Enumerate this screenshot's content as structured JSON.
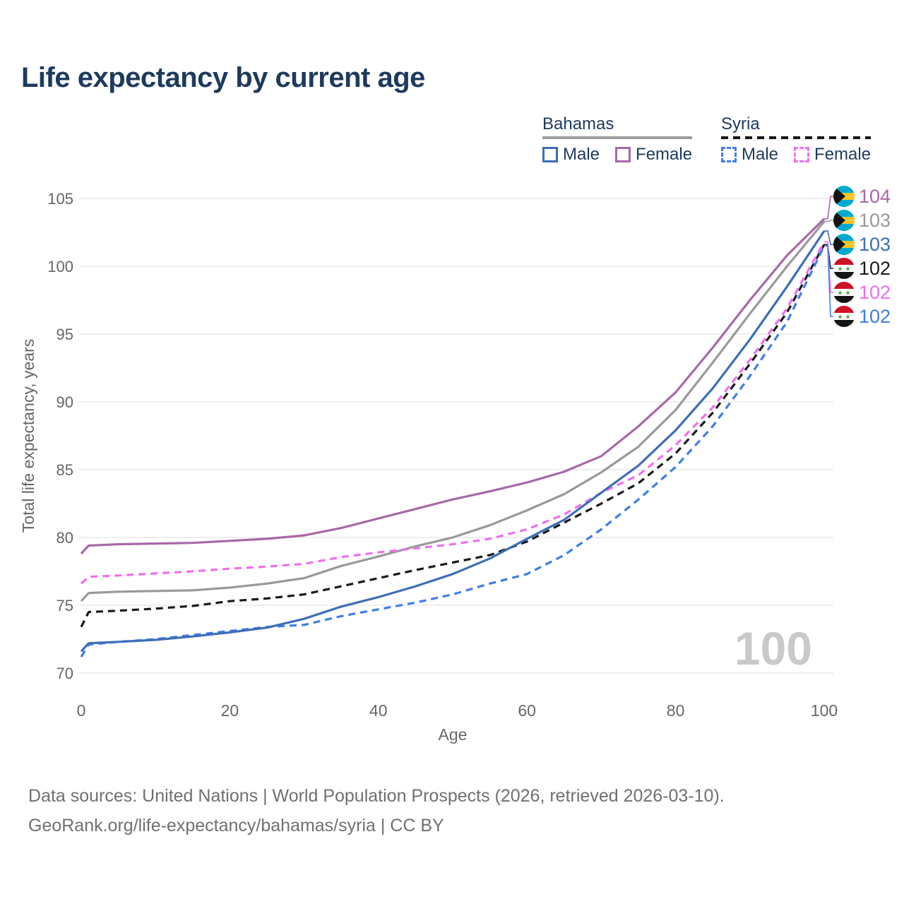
{
  "title": "Life expectancy by current age",
  "legend": {
    "groups": [
      {
        "country": "Bahamas",
        "underline_style": "solid",
        "underline_color": "#9e9e9e",
        "items": [
          {
            "label": "Male",
            "color": "#3d6eb8",
            "dash": false
          },
          {
            "label": "Female",
            "color": "#a669a8",
            "dash": false
          }
        ]
      },
      {
        "country": "Syria",
        "underline_style": "dashed",
        "underline_color": "#151515",
        "items": [
          {
            "label": "Male",
            "color": "#3e7de8",
            "dash": true
          },
          {
            "label": "Female",
            "color": "#f06ef0",
            "dash": true
          }
        ]
      }
    ]
  },
  "chart_data": {
    "type": "line",
    "title": "Life expectancy by current age",
    "xlabel": "Age",
    "ylabel": "Total life expectancy, years",
    "xlim": [
      0,
      100
    ],
    "ylim": [
      70,
      105
    ],
    "x_ticks": [
      0,
      20,
      40,
      60,
      80,
      100
    ],
    "y_ticks": [
      70,
      75,
      80,
      85,
      90,
      95,
      100,
      105
    ],
    "grid": "horizontal",
    "legend_position": "top-right",
    "watermark": "100",
    "x": [
      0,
      1,
      5,
      10,
      15,
      20,
      25,
      30,
      35,
      40,
      45,
      50,
      55,
      60,
      65,
      70,
      75,
      80,
      85,
      90,
      95,
      100
    ],
    "series": [
      {
        "name": "Bahamas Female",
        "color": "#a669a8",
        "dash": false,
        "end_label": "104",
        "label_row": 0,
        "values": [
          78.8,
          79.4,
          79.5,
          79.55,
          79.6,
          79.75,
          79.9,
          80.15,
          80.7,
          81.4,
          82.1,
          82.8,
          83.4,
          84.05,
          84.85,
          86.0,
          88.2,
          90.7,
          94.0,
          97.5,
          100.8,
          103.5
        ]
      },
      {
        "name": "Bahamas",
        "color": "#999999",
        "dash": false,
        "end_label": "103",
        "label_row": 1,
        "values": [
          75.3,
          75.9,
          76.0,
          76.05,
          76.1,
          76.3,
          76.6,
          77.0,
          77.9,
          78.6,
          79.35,
          80.0,
          80.9,
          82.0,
          83.2,
          84.8,
          86.7,
          89.4,
          92.9,
          96.5,
          100.0,
          103.3
        ]
      },
      {
        "name": "Syria",
        "color": "#1a1a1a",
        "dash": true,
        "end_label": "102",
        "label_row": 3,
        "values": [
          73.4,
          74.5,
          74.6,
          74.75,
          74.95,
          75.3,
          75.5,
          75.8,
          76.4,
          77.0,
          77.6,
          78.15,
          78.7,
          79.7,
          81.1,
          82.5,
          84.0,
          86.2,
          89.2,
          92.8,
          96.6,
          101.6
        ]
      },
      {
        "name": "Syria Female",
        "color": "#f06ef0",
        "dash": true,
        "end_label": "102",
        "label_row": 4,
        "values": [
          76.6,
          77.1,
          77.2,
          77.35,
          77.5,
          77.7,
          77.85,
          78.05,
          78.55,
          78.9,
          79.2,
          79.5,
          79.9,
          80.6,
          81.7,
          83.3,
          84.6,
          86.8,
          89.6,
          93.1,
          96.9,
          101.8
        ]
      },
      {
        "name": "Syria Male",
        "color": "#3e7de8",
        "dash": true,
        "end_label": "102",
        "label_row": 5,
        "values": [
          71.2,
          72.1,
          72.3,
          72.5,
          72.8,
          73.1,
          73.4,
          73.55,
          74.2,
          74.7,
          75.2,
          75.8,
          76.6,
          77.3,
          78.7,
          80.6,
          82.8,
          85.2,
          88.2,
          91.9,
          95.9,
          101.5
        ]
      },
      {
        "name": "Bahamas Male",
        "color": "#3d6eb8",
        "dash": false,
        "end_label": "103",
        "label_row": 2,
        "values": [
          71.6,
          72.2,
          72.3,
          72.45,
          72.7,
          73.0,
          73.35,
          74.0,
          74.9,
          75.6,
          76.4,
          77.3,
          78.45,
          79.9,
          81.3,
          83.3,
          85.3,
          87.9,
          91.0,
          94.6,
          98.5,
          102.6
        ]
      }
    ]
  },
  "right_labels": [
    {
      "flag": "bahamas",
      "value": "104",
      "color": "#a669a8"
    },
    {
      "flag": "bahamas",
      "value": "103",
      "color": "#999999"
    },
    {
      "flag": "bahamas",
      "value": "103",
      "color": "#3d6eb8"
    },
    {
      "flag": "syria",
      "value": "102",
      "color": "#1a1a1a"
    },
    {
      "flag": "syria",
      "value": "102",
      "color": "#f06ef0"
    },
    {
      "flag": "syria",
      "value": "102",
      "color": "#3e7de8"
    }
  ],
  "colors": {
    "title": "#1e3a5f",
    "axis_text": "#666666",
    "gridline": "#e4e4e4",
    "watermark": "#c9c9c9",
    "footer_text": "#707070"
  },
  "footer": {
    "line1": "Data sources: United Nations | World Population Prospects (2026, retrieved 2026-03-10).",
    "line2": "GeoRank.org/life-expectancy/bahamas/syria | CC BY"
  }
}
